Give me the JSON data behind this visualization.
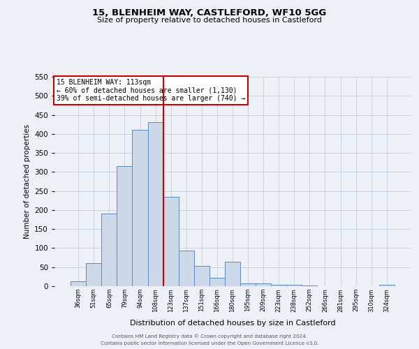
{
  "title1": "15, BLENHEIM WAY, CASTLEFORD, WF10 5GG",
  "title2": "Size of property relative to detached houses in Castleford",
  "xlabel": "Distribution of detached houses by size in Castleford",
  "ylabel": "Number of detached properties",
  "categories": [
    "36sqm",
    "51sqm",
    "65sqm",
    "79sqm",
    "94sqm",
    "108sqm",
    "123sqm",
    "137sqm",
    "151sqm",
    "166sqm",
    "180sqm",
    "195sqm",
    "209sqm",
    "223sqm",
    "238sqm",
    "252sqm",
    "266sqm",
    "281sqm",
    "295sqm",
    "310sqm",
    "324sqm"
  ],
  "values": [
    13,
    60,
    190,
    315,
    410,
    430,
    235,
    93,
    53,
    22,
    65,
    8,
    7,
    4,
    4,
    2,
    0,
    0,
    0,
    0,
    4
  ],
  "bar_color_fill": "#cdd9e8",
  "bar_color_edge": "#5b8ac5",
  "grid_color": "#c8d4e3",
  "background_color": "#edf1f7",
  "vline_color": "#cc0000",
  "vline_x": 5.5,
  "annotation_title": "15 BLENHEIM WAY: 113sqm",
  "annotation_line1": "← 60% of detached houses are smaller (1,130)",
  "annotation_line2": "39% of semi-detached houses are larger (740) →",
  "annotation_box_color": "#ffffff",
  "annotation_border_color": "#cc0000",
  "ylim": [
    0,
    550
  ],
  "yticks": [
    0,
    50,
    100,
    150,
    200,
    250,
    300,
    350,
    400,
    450,
    500,
    550
  ],
  "footer1": "Contains HM Land Registry data © Crown copyright and database right 2024.",
  "footer2": "Contains public sector information licensed under the Open Government Licence v3.0."
}
